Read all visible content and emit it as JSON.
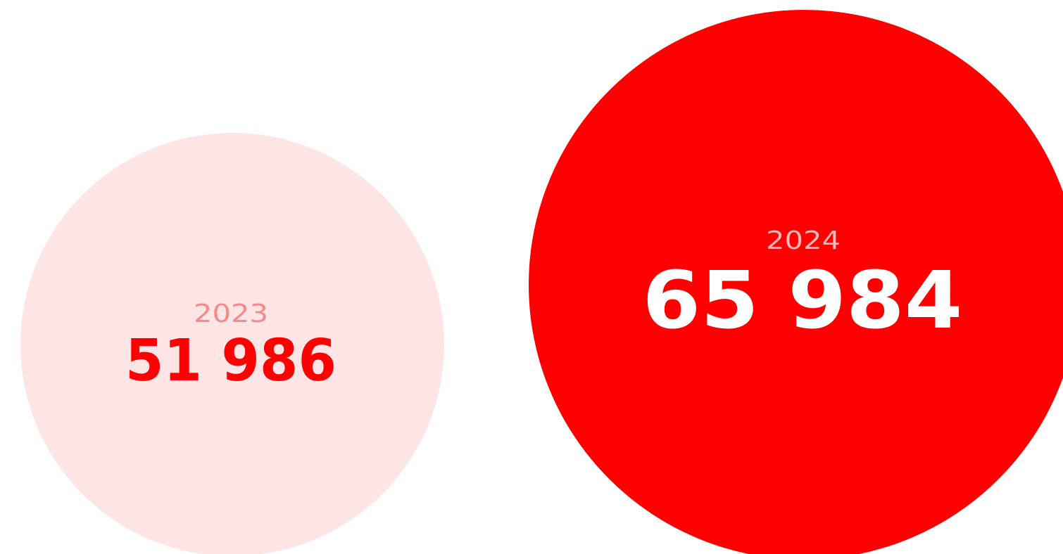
{
  "items": [
    {
      "year": "2023",
      "value": "51 986"
    },
    {
      "year": "2024",
      "value": "65 984"
    }
  ]
}
